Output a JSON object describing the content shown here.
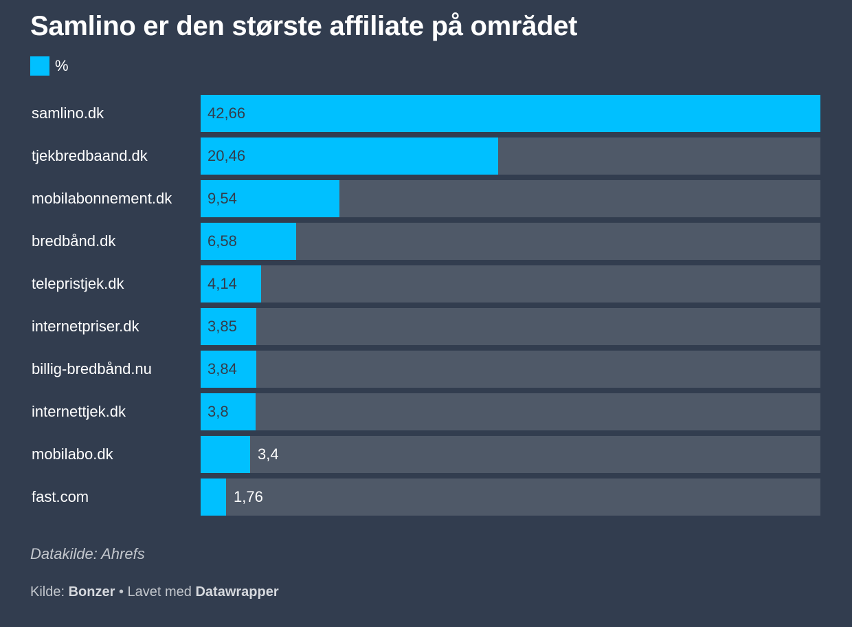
{
  "chart_data": {
    "type": "bar",
    "orientation": "horizontal",
    "title": "Samlino er den største affiliate på omrădet",
    "legend": [
      {
        "label": "%",
        "color": "#00c0ff"
      }
    ],
    "categories": [
      "samlino.dk",
      "tjekbredbaand.dk",
      "mobilabonnement.dk",
      "bredbånd.dk",
      "telepristjek.dk",
      "internetpriser.dk",
      "billig-bredbånd.nu",
      "internettjek.dk",
      "mobilabo.dk",
      "fast.com"
    ],
    "values": [
      42.66,
      20.46,
      9.54,
      6.58,
      4.14,
      3.85,
      3.84,
      3.8,
      3.4,
      1.76
    ],
    "value_labels": [
      "42,66",
      "20,46",
      "9,54",
      "6,58",
      "4,14",
      "3,85",
      "3,84",
      "3,8",
      "3,4",
      "1,76"
    ],
    "series": [
      {
        "name": "%",
        "values": [
          42.66,
          20.46,
          9.54,
          6.58,
          4.14,
          3.85,
          3.84,
          3.8,
          3.4,
          1.76
        ]
      }
    ],
    "xlim": [
      0,
      42.66
    ],
    "grid": false,
    "legend_placement": "top-left"
  },
  "notes": {
    "source_note": "Datakilde: Ahrefs"
  },
  "footer": {
    "source_label": "Kilde:",
    "source_name": "Bonzer",
    "separator": "•",
    "made_with_label": "Lavet med",
    "tool_name": "Datawrapper"
  },
  "colors": {
    "background": "#323d4f",
    "bar": "#00c0ff",
    "track": "#4f5968",
    "label_on_bar": "#333d4c",
    "label_off_bar": "#ffffff"
  }
}
